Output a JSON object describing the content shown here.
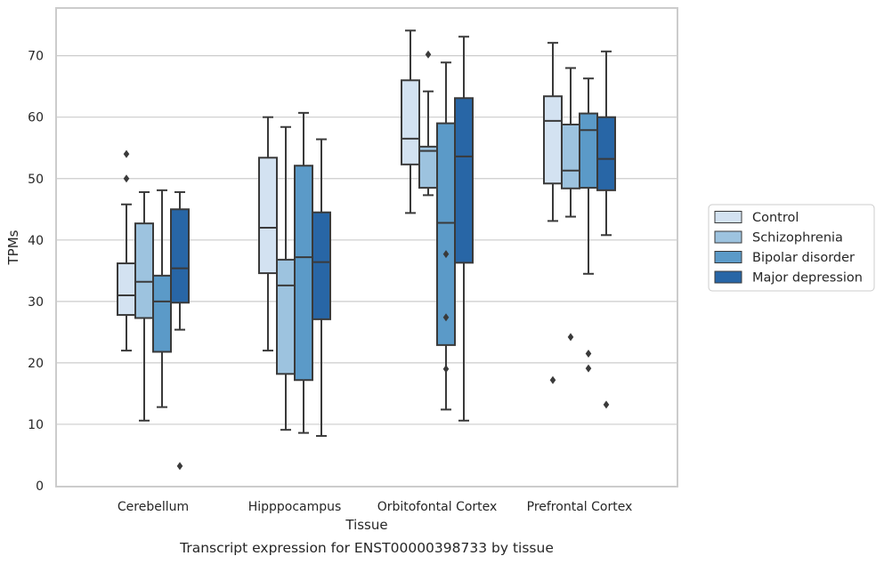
{
  "chart_data": {
    "type": "boxplot",
    "caption": "Transcript expression for ENST00000398733 by tissue",
    "xlabel": "Tissue",
    "ylabel": "TPMs",
    "ylim": [
      0,
      77
    ],
    "yticks": [
      0,
      10,
      20,
      30,
      40,
      50,
      60,
      70
    ],
    "grid": "horizontal",
    "legend_position": "right",
    "categories": [
      "Cerebellum",
      "Hipppocampus",
      "Orbitofontal Cortex",
      "Prefrontal Cortex"
    ],
    "series": [
      {
        "name": "Control",
        "color": "#d3e2f1",
        "boxes": [
          {
            "whislo": 22.0,
            "q1": 27.8,
            "med": 31.0,
            "q3": 36.2,
            "whishi": 45.8,
            "fliers": [
              50.0,
              54.0
            ]
          },
          {
            "whislo": 22.0,
            "q1": 34.6,
            "med": 42.0,
            "q3": 53.4,
            "whishi": 60.0,
            "fliers": []
          },
          {
            "whislo": 44.4,
            "q1": 52.3,
            "med": 56.5,
            "q3": 66.0,
            "whishi": 74.1,
            "fliers": []
          },
          {
            "whislo": 43.1,
            "q1": 49.2,
            "med": 59.4,
            "q3": 63.4,
            "whishi": 72.1,
            "fliers": [
              17.2
            ]
          }
        ]
      },
      {
        "name": "Schizophrenia",
        "color": "#9dc3df",
        "boxes": [
          {
            "whislo": 10.6,
            "q1": 27.3,
            "med": 33.2,
            "q3": 42.7,
            "whishi": 47.8,
            "fliers": []
          },
          {
            "whislo": 9.1,
            "q1": 18.2,
            "med": 32.6,
            "q3": 36.8,
            "whishi": 58.4,
            "fliers": []
          },
          {
            "whislo": 47.3,
            "q1": 48.5,
            "med": 54.5,
            "q3": 55.2,
            "whishi": 64.2,
            "fliers": [
              70.2
            ]
          },
          {
            "whislo": 43.8,
            "q1": 48.4,
            "med": 51.3,
            "q3": 58.8,
            "whishi": 68.0,
            "fliers": [
              24.2
            ]
          }
        ]
      },
      {
        "name": "Bipolar disorder",
        "color": "#5b9ac8",
        "boxes": [
          {
            "whislo": 12.8,
            "q1": 21.8,
            "med": 30.0,
            "q3": 34.2,
            "whishi": 48.1,
            "fliers": []
          },
          {
            "whislo": 8.6,
            "q1": 17.2,
            "med": 37.2,
            "q3": 52.1,
            "whishi": 60.7,
            "fliers": []
          },
          {
            "whislo": 12.4,
            "q1": 22.9,
            "med": 42.8,
            "q3": 59.0,
            "whishi": 68.9,
            "fliers": [
              19.0,
              27.4,
              37.7
            ]
          },
          {
            "whislo": 34.5,
            "q1": 48.5,
            "med": 57.9,
            "q3": 60.6,
            "whishi": 66.3,
            "fliers": [
              19.1,
              21.5
            ]
          }
        ]
      },
      {
        "name": "Major depression",
        "color": "#2866a6",
        "boxes": [
          {
            "whislo": 25.4,
            "q1": 29.8,
            "med": 35.4,
            "q3": 45.0,
            "whishi": 47.8,
            "fliers": [
              3.2
            ]
          },
          {
            "whislo": 8.1,
            "q1": 27.1,
            "med": 36.4,
            "q3": 44.5,
            "whishi": 56.4,
            "fliers": []
          },
          {
            "whislo": 10.6,
            "q1": 36.3,
            "med": 53.6,
            "q3": 63.1,
            "whishi": 73.1,
            "fliers": []
          },
          {
            "whislo": 40.8,
            "q1": 48.1,
            "med": 53.2,
            "q3": 60.0,
            "whishi": 70.7,
            "fliers": [
              13.2
            ]
          }
        ]
      }
    ]
  }
}
